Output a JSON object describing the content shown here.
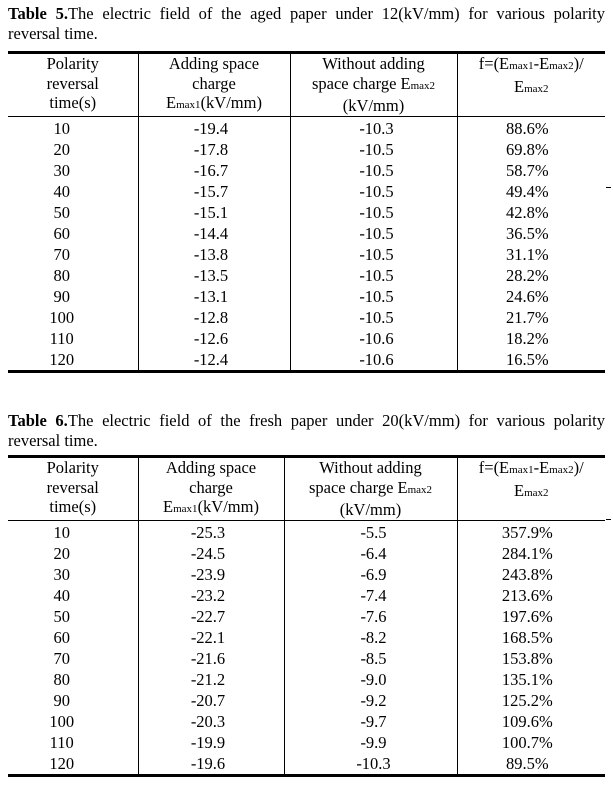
{
  "tables": [
    {
      "number": "Table 5.",
      "caption": "The electric field of the aged paper under 12(kV/mm) for various polarity reversal time.",
      "headers": {
        "col1": [
          "Polarity",
          "reversal",
          "time(s)"
        ],
        "col2_lines": [
          "Adding space",
          "charge"
        ],
        "col2_sym": "E",
        "col2_sub": "max1",
        "col2_unit": "(kV/mm)",
        "col3_line1": "Without adding",
        "col3_pre": "space charge E",
        "col3_sub": "max2",
        "col3_unit": "(kV/mm)",
        "col4_pre": "f=(E",
        "col4_sub1": "max1",
        "col4_mid": "-E",
        "col4_sub2": "max2",
        "col4_post": ")/",
        "col4_den": "E",
        "col4_den_sub": "max2"
      },
      "rows": [
        [
          "10",
          "-19.4",
          "-10.3",
          "88.6%"
        ],
        [
          "20",
          "-17.8",
          "-10.5",
          "69.8%"
        ],
        [
          "30",
          "-16.7",
          "-10.5",
          "58.7%"
        ],
        [
          "40",
          "-15.7",
          "-10.5",
          "49.4%"
        ],
        [
          "50",
          "-15.1",
          "-10.5",
          "42.8%"
        ],
        [
          "60",
          "-14.4",
          "-10.5",
          "36.5%"
        ],
        [
          "70",
          "-13.8",
          "-10.5",
          "31.1%"
        ],
        [
          "80",
          "-13.5",
          "-10.5",
          "28.2%"
        ],
        [
          "90",
          "-13.1",
          "-10.5",
          "24.6%"
        ],
        [
          "100",
          "-12.8",
          "-10.5",
          "21.7%"
        ],
        [
          "110",
          "-12.6",
          "-10.6",
          "18.2%"
        ],
        [
          "120",
          "-12.4",
          "-10.6",
          "16.5%"
        ]
      ]
    },
    {
      "number": "Table 6.",
      "caption": "The electric field of the fresh paper under 20(kV/mm) for various polarity reversal time.",
      "headers": {
        "col1": [
          "Polarity",
          "reversal",
          "time(s)"
        ],
        "col2_lines": [
          "Adding space",
          "charge"
        ],
        "col2_sym": "E",
        "col2_sub": "max1",
        "col2_unit": "(kV/mm)",
        "col3_line1": "Without adding",
        "col3_pre": "space charge E",
        "col3_sub": "max2",
        "col3_unit": "(kV/mm)",
        "col4_pre": "f=(E",
        "col4_sub1": "max1",
        "col4_mid": "-E",
        "col4_sub2": "max2",
        "col4_post": ")/",
        "col4_den": "E",
        "col4_den_sub": "max2"
      },
      "rows": [
        [
          "10",
          "-25.3",
          "-5.5",
          "357.9%"
        ],
        [
          "20",
          "-24.5",
          "-6.4",
          "284.1%"
        ],
        [
          "30",
          "-23.9",
          "-6.9",
          "243.8%"
        ],
        [
          "40",
          "-23.2",
          "-7.4",
          "213.6%"
        ],
        [
          "50",
          "-22.7",
          "-7.6",
          "197.6%"
        ],
        [
          "60",
          "-22.1",
          "-8.2",
          "168.5%"
        ],
        [
          "70",
          "-21.6",
          "-8.5",
          "153.8%"
        ],
        [
          "80",
          "-21.2",
          "-9.0",
          "135.1%"
        ],
        [
          "90",
          "-20.7",
          "-9.2",
          "125.2%"
        ],
        [
          "100",
          "-20.3",
          "-9.7",
          "109.6%"
        ],
        [
          "110",
          "-19.9",
          "-9.9",
          "100.7%"
        ],
        [
          "120",
          "-19.6",
          "-10.3",
          "89.5%"
        ]
      ]
    }
  ]
}
